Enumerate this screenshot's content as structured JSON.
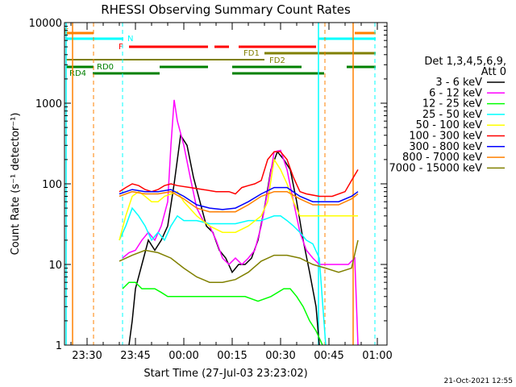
{
  "chart_data": {
    "type": "line",
    "title": "RHESSI Observing Summary Count Rates",
    "xlabel": "Start Time (27-Jul-03 23:23:02)",
    "ylabel": "Count Rate (s⁻¹ detector⁻¹)",
    "yscale": "log",
    "ylim": [
      1,
      10000
    ],
    "xlim_minutes": [
      0,
      100
    ],
    "x_tick_labels": [
      "23:30",
      "23:45",
      "00:00",
      "00:15",
      "00:30",
      "00:45",
      "01:00"
    ],
    "x_tick_minutes": [
      7,
      22,
      37,
      52,
      67,
      82,
      97
    ],
    "y_tick_labels": [
      "1",
      "10",
      "100",
      "1000",
      "10000"
    ],
    "y_tick_values": [
      1,
      10,
      100,
      1000,
      10000
    ],
    "legend_header": [
      "Det 1,3,4,5,6,9,",
      "Att 0"
    ],
    "legend_position": "right",
    "timestamp": "21-Oct-2021 12:55",
    "series": [
      {
        "name": "3 - 6 keV",
        "color": "#000000",
        "points": [
          [
            20,
            1
          ],
          [
            21,
            2
          ],
          [
            22,
            5
          ],
          [
            24,
            10
          ],
          [
            26,
            20
          ],
          [
            28,
            15
          ],
          [
            30,
            20
          ],
          [
            32,
            30
          ],
          [
            34,
            100
          ],
          [
            36,
            400
          ],
          [
            38,
            300
          ],
          [
            40,
            120
          ],
          [
            42,
            60
          ],
          [
            44,
            30
          ],
          [
            46,
            25
          ],
          [
            48,
            15
          ],
          [
            50,
            12
          ],
          [
            52,
            8
          ],
          [
            54,
            10
          ],
          [
            56,
            10
          ],
          [
            58,
            12
          ],
          [
            60,
            20
          ],
          [
            62,
            50
          ],
          [
            64,
            150
          ],
          [
            66,
            250
          ],
          [
            68,
            200
          ],
          [
            70,
            150
          ],
          [
            72,
            60
          ],
          [
            74,
            20
          ],
          [
            76,
            8
          ],
          [
            78,
            3
          ],
          [
            79,
            1
          ]
        ]
      },
      {
        "name": "6 - 12 keV",
        "color": "#ff00ff",
        "points": [
          [
            18,
            12
          ],
          [
            20,
            14
          ],
          [
            22,
            15
          ],
          [
            24,
            20
          ],
          [
            26,
            25
          ],
          [
            28,
            20
          ],
          [
            30,
            30
          ],
          [
            32,
            60
          ],
          [
            33,
            300
          ],
          [
            34,
            1100
          ],
          [
            35,
            600
          ],
          [
            37,
            300
          ],
          [
            39,
            120
          ],
          [
            41,
            50
          ],
          [
            43,
            35
          ],
          [
            45,
            30
          ],
          [
            47,
            20
          ],
          [
            49,
            12
          ],
          [
            51,
            10
          ],
          [
            53,
            12
          ],
          [
            55,
            10
          ],
          [
            57,
            12
          ],
          [
            59,
            15
          ],
          [
            61,
            30
          ],
          [
            63,
            80
          ],
          [
            65,
            250
          ],
          [
            67,
            260
          ],
          [
            69,
            150
          ],
          [
            71,
            60
          ],
          [
            73,
            25
          ],
          [
            75,
            15
          ],
          [
            77,
            12
          ],
          [
            79,
            10
          ],
          [
            82,
            10
          ],
          [
            86,
            10
          ],
          [
            88,
            10
          ],
          [
            90,
            12
          ],
          [
            91,
            1
          ]
        ]
      },
      {
        "name": "12 - 25 keV",
        "color": "#00ff00",
        "points": [
          [
            18,
            5
          ],
          [
            20,
            6
          ],
          [
            22,
            6
          ],
          [
            24,
            5
          ],
          [
            26,
            5
          ],
          [
            28,
            5
          ],
          [
            30,
            4.5
          ],
          [
            32,
            4
          ],
          [
            34,
            4
          ],
          [
            36,
            4
          ],
          [
            40,
            4
          ],
          [
            44,
            4
          ],
          [
            48,
            4
          ],
          [
            52,
            4
          ],
          [
            56,
            4
          ],
          [
            60,
            3.5
          ],
          [
            64,
            4
          ],
          [
            68,
            5
          ],
          [
            70,
            5
          ],
          [
            72,
            4
          ],
          [
            74,
            3
          ],
          [
            76,
            2
          ],
          [
            78,
            1.5
          ],
          [
            80,
            1
          ]
        ]
      },
      {
        "name": "25 - 50 keV",
        "color": "#00ffff",
        "points": [
          [
            17,
            20
          ],
          [
            19,
            30
          ],
          [
            21,
            50
          ],
          [
            23,
            40
          ],
          [
            25,
            30
          ],
          [
            27,
            20
          ],
          [
            29,
            25
          ],
          [
            31,
            20
          ],
          [
            33,
            30
          ],
          [
            35,
            40
          ],
          [
            37,
            35
          ],
          [
            41,
            35
          ],
          [
            45,
            32
          ],
          [
            49,
            32
          ],
          [
            53,
            32
          ],
          [
            57,
            35
          ],
          [
            61,
            35
          ],
          [
            65,
            40
          ],
          [
            67,
            40
          ],
          [
            69,
            35
          ],
          [
            71,
            30
          ],
          [
            73,
            25
          ],
          [
            75,
            20
          ],
          [
            77,
            18
          ],
          [
            79,
            12
          ],
          [
            81,
            1
          ]
        ]
      },
      {
        "name": "50 - 100 keV",
        "color": "#ffff00",
        "points": [
          [
            17,
            20
          ],
          [
            19,
            40
          ],
          [
            21,
            70
          ],
          [
            23,
            80
          ],
          [
            25,
            70
          ],
          [
            27,
            60
          ],
          [
            29,
            60
          ],
          [
            31,
            70
          ],
          [
            33,
            75
          ],
          [
            35,
            80
          ],
          [
            37,
            60
          ],
          [
            41,
            40
          ],
          [
            45,
            30
          ],
          [
            49,
            25
          ],
          [
            53,
            25
          ],
          [
            57,
            30
          ],
          [
            61,
            40
          ],
          [
            63,
            60
          ],
          [
            65,
            200
          ],
          [
            67,
            150
          ],
          [
            69,
            100
          ],
          [
            71,
            60
          ],
          [
            73,
            40
          ],
          [
            75,
            40
          ],
          [
            79,
            40
          ],
          [
            83,
            40
          ],
          [
            87,
            40
          ],
          [
            91,
            40
          ]
        ]
      },
      {
        "name": "100 - 300 keV",
        "color": "#ff0000",
        "points": [
          [
            17,
            80
          ],
          [
            19,
            90
          ],
          [
            21,
            100
          ],
          [
            23,
            95
          ],
          [
            25,
            85
          ],
          [
            27,
            80
          ],
          [
            29,
            85
          ],
          [
            31,
            95
          ],
          [
            33,
            100
          ],
          [
            35,
            95
          ],
          [
            39,
            90
          ],
          [
            43,
            85
          ],
          [
            47,
            80
          ],
          [
            51,
            80
          ],
          [
            53,
            75
          ],
          [
            55,
            90
          ],
          [
            57,
            95
          ],
          [
            59,
            100
          ],
          [
            61,
            110
          ],
          [
            63,
            200
          ],
          [
            65,
            250
          ],
          [
            67,
            250
          ],
          [
            69,
            200
          ],
          [
            71,
            120
          ],
          [
            73,
            80
          ],
          [
            75,
            75
          ],
          [
            79,
            70
          ],
          [
            83,
            70
          ],
          [
            87,
            80
          ],
          [
            89,
            110
          ],
          [
            91,
            150
          ]
        ]
      },
      {
        "name": "300 - 800 keV",
        "color": "#0000ff",
        "points": [
          [
            17,
            75
          ],
          [
            21,
            85
          ],
          [
            25,
            80
          ],
          [
            29,
            80
          ],
          [
            33,
            85
          ],
          [
            37,
            70
          ],
          [
            41,
            55
          ],
          [
            45,
            50
          ],
          [
            49,
            48
          ],
          [
            53,
            50
          ],
          [
            57,
            60
          ],
          [
            61,
            75
          ],
          [
            65,
            90
          ],
          [
            69,
            90
          ],
          [
            73,
            70
          ],
          [
            77,
            60
          ],
          [
            81,
            60
          ],
          [
            85,
            60
          ],
          [
            89,
            70
          ],
          [
            91,
            80
          ]
        ]
      },
      {
        "name": "800 - 7000 keV",
        "color": "#ff8000",
        "points": [
          [
            17,
            70
          ],
          [
            21,
            80
          ],
          [
            25,
            75
          ],
          [
            29,
            75
          ],
          [
            33,
            80
          ],
          [
            37,
            65
          ],
          [
            41,
            50
          ],
          [
            45,
            45
          ],
          [
            49,
            45
          ],
          [
            53,
            45
          ],
          [
            57,
            55
          ],
          [
            61,
            70
          ],
          [
            65,
            80
          ],
          [
            69,
            80
          ],
          [
            73,
            65
          ],
          [
            77,
            55
          ],
          [
            81,
            55
          ],
          [
            85,
            55
          ],
          [
            89,
            65
          ],
          [
            91,
            75
          ]
        ]
      },
      {
        "name": "7000 - 15000 keV",
        "color": "#808000",
        "points": [
          [
            17,
            11
          ],
          [
            21,
            13
          ],
          [
            25,
            15
          ],
          [
            29,
            14
          ],
          [
            33,
            12
          ],
          [
            37,
            9
          ],
          [
            41,
            7
          ],
          [
            45,
            6
          ],
          [
            49,
            6
          ],
          [
            53,
            6.5
          ],
          [
            57,
            8
          ],
          [
            61,
            11
          ],
          [
            65,
            13
          ],
          [
            69,
            13
          ],
          [
            73,
            12
          ],
          [
            77,
            10
          ],
          [
            81,
            9
          ],
          [
            85,
            8
          ],
          [
            89,
            9
          ],
          [
            91,
            20
          ]
        ]
      }
    ],
    "flag_labels": [
      "E",
      "N",
      "F",
      "FD1",
      "FD2",
      "RD0",
      "RD4"
    ]
  }
}
